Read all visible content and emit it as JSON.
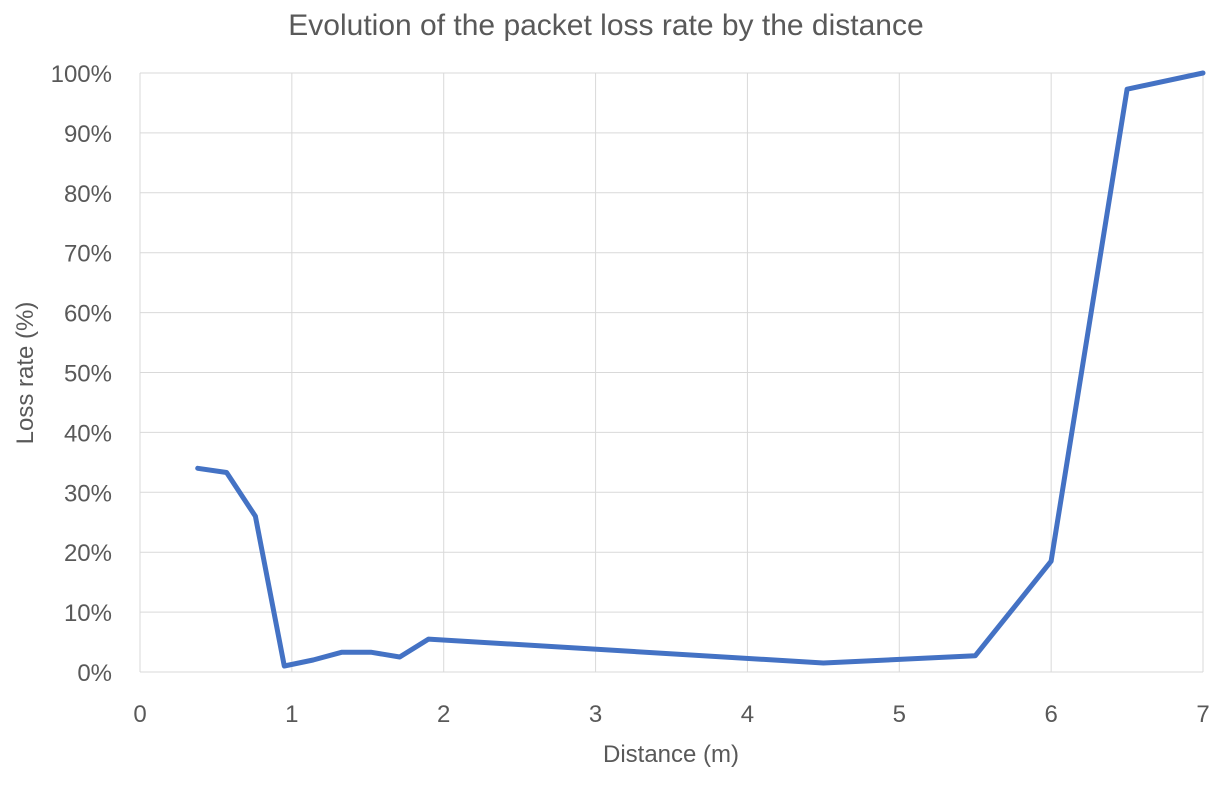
{
  "chart_data": {
    "type": "line",
    "title": "Evolution of the packet loss rate by the distance",
    "xlabel": "Distance (m)",
    "ylabel": "Loss rate (%)",
    "xlim": [
      0,
      7
    ],
    "ylim": [
      0,
      100
    ],
    "x_ticks": [
      0,
      1,
      2,
      3,
      4,
      5,
      6,
      7
    ],
    "x_tick_labels": [
      "0",
      "1",
      "2",
      "3",
      "4",
      "5",
      "6",
      "7"
    ],
    "y_ticks": [
      0,
      10,
      20,
      30,
      40,
      50,
      60,
      70,
      80,
      90,
      100
    ],
    "y_tick_labels": [
      "0%",
      "10%",
      "20%",
      "30%",
      "40%",
      "50%",
      "60%",
      "70%",
      "80%",
      "90%",
      "100%"
    ],
    "grid": true,
    "legend": "none",
    "series": [
      {
        "color": "#4472C4",
        "x": [
          0.38,
          0.57,
          0.76,
          0.95,
          1.14,
          1.33,
          1.52,
          1.71,
          1.9,
          4.5,
          5.5,
          6.0,
          6.5,
          7.0
        ],
        "y": [
          34,
          33.3,
          26,
          1,
          2,
          3.3,
          3.3,
          2.5,
          5.5,
          1.5,
          2.7,
          18.5,
          97.3,
          100
        ]
      }
    ]
  }
}
